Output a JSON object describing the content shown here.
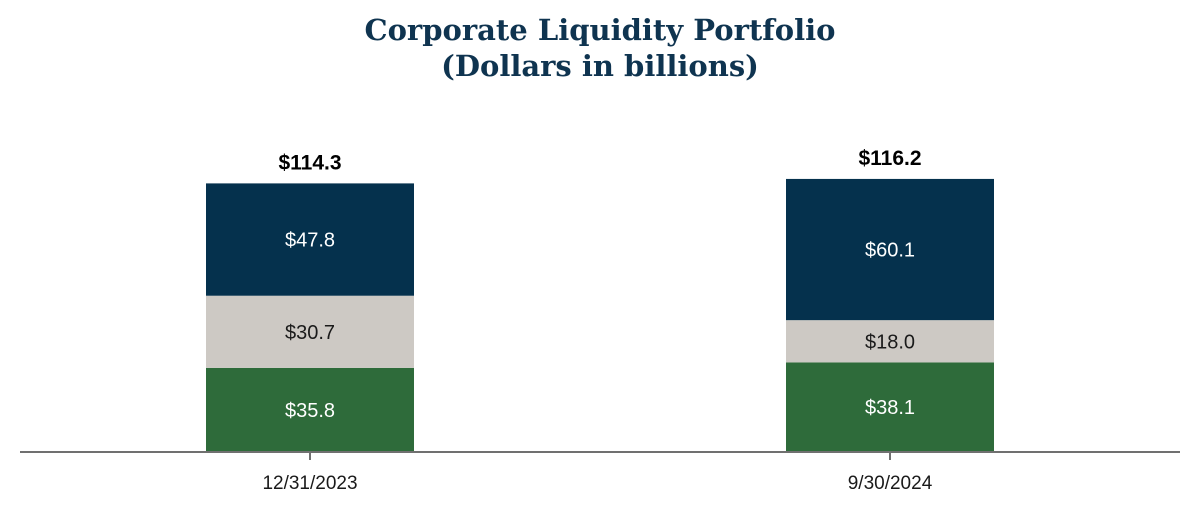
{
  "chart_data": {
    "type": "bar",
    "stacked": true,
    "title": "Corporate Liquidity Portfolio",
    "subtitle": "(Dollars in billions)",
    "categories": [
      "12/31/2023",
      "9/30/2024"
    ],
    "series": [
      {
        "values": [
          35.8,
          38.1
        ],
        "labels": [
          "$35.8",
          "$38.1"
        ],
        "color": "#2e6b3a",
        "label_color": "#ffffff"
      },
      {
        "values": [
          30.7,
          18.0
        ],
        "labels": [
          "$30.7",
          "$18.0"
        ],
        "color": "#cdc9c4",
        "label_color": "#1a1a1a"
      },
      {
        "values": [
          47.8,
          60.1
        ],
        "labels": [
          "$47.8",
          "$60.1"
        ],
        "color": "#05314d",
        "label_color": "#ffffff"
      }
    ],
    "totals": [
      114.3,
      116.2
    ],
    "total_labels": [
      "$114.3",
      "$116.2"
    ],
    "ylim": [
      0,
      130
    ],
    "grid": false,
    "axis_color": "#707070"
  }
}
